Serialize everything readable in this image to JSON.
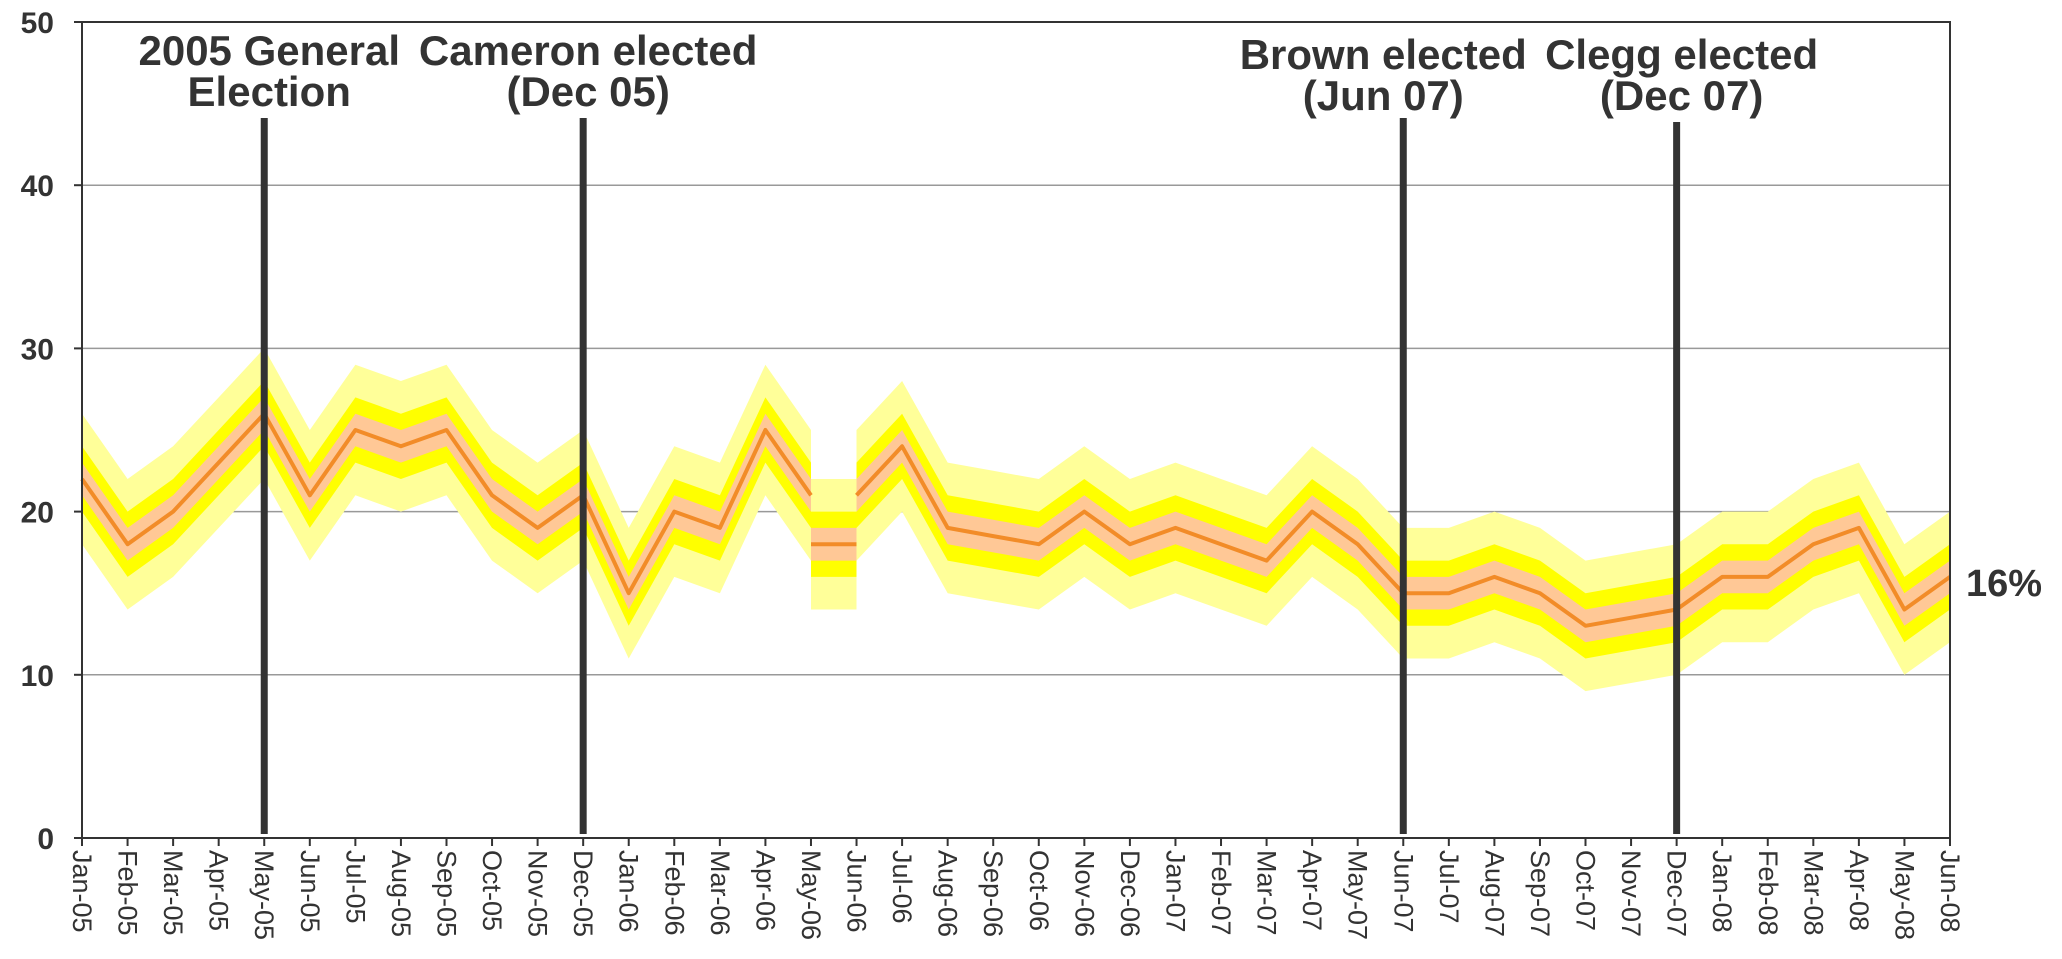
{
  "chart_data": {
    "type": "line",
    "title": "",
    "xlabel": "",
    "ylabel": "",
    "ylim": [
      0,
      50
    ],
    "yticks": [
      "0",
      "10",
      "20",
      "30",
      "40",
      "50"
    ],
    "grid": true,
    "x": [
      "Jan-05",
      "Feb-05",
      "Mar-05",
      "Apr-05",
      "May-05",
      "Jun-05",
      "Jul-05",
      "Aug-05",
      "Sep-05",
      "Oct-05",
      "Nov-05",
      "Dec-05",
      "Jan-06",
      "Feb-06",
      "Mar-06",
      "Apr-06",
      "May-06",
      "Jun-06",
      "Jul-06",
      "Aug-06",
      "Sep-06",
      "Oct-06",
      "Nov-06",
      "Dec-06",
      "Jan-07",
      "Feb-07",
      "Mar-07",
      "Apr-07",
      "May-07",
      "Jun-07",
      "Jul-07",
      "Aug-07",
      "Sep-07",
      "Oct-07",
      "Nov-07",
      "Dec-07",
      "Jan-08",
      "Feb-08",
      "Mar-08",
      "Apr-08",
      "May-08",
      "Jun-08"
    ],
    "segments": [
      {
        "x_range": [
          "Jan-05",
          "May-06"
        ],
        "values": [
          22,
          18,
          20,
          23,
          26,
          21,
          25,
          24,
          25,
          21,
          19,
          21,
          15,
          20,
          19,
          25,
          21
        ]
      },
      {
        "x_range": [
          "May-06",
          "Jun-06"
        ],
        "values": [
          18,
          18
        ]
      },
      {
        "x_range": [
          "Jun-06",
          "Jun-08"
        ],
        "values": [
          21,
          24,
          19,
          18.5,
          18,
          20,
          18,
          19,
          18,
          17,
          20,
          18,
          15,
          15,
          16,
          15,
          13,
          13.5,
          14,
          16,
          16,
          18,
          19,
          14,
          16
        ]
      }
    ],
    "bands": [
      {
        "color": "#FFFF99",
        "half_width": 4
      },
      {
        "color": "#FFFF00",
        "half_width": 2
      },
      {
        "color": "#FFC896",
        "half_width": 1
      }
    ],
    "line_color": "#F28C28",
    "events": [
      {
        "x": "May-05",
        "label_lines": [
          "2005 General",
          "Election"
        ]
      },
      {
        "x": "Dec-05",
        "label_lines": [
          "Cameron elected",
          "(Dec 05)"
        ]
      },
      {
        "x": "Jun-07",
        "label_lines": [
          "Brown elected",
          "(Jun 07)"
        ]
      },
      {
        "x": "Dec-07",
        "label_lines": [
          "Clegg elected",
          "(Dec 07)"
        ]
      }
    ],
    "end_label": "16%"
  }
}
